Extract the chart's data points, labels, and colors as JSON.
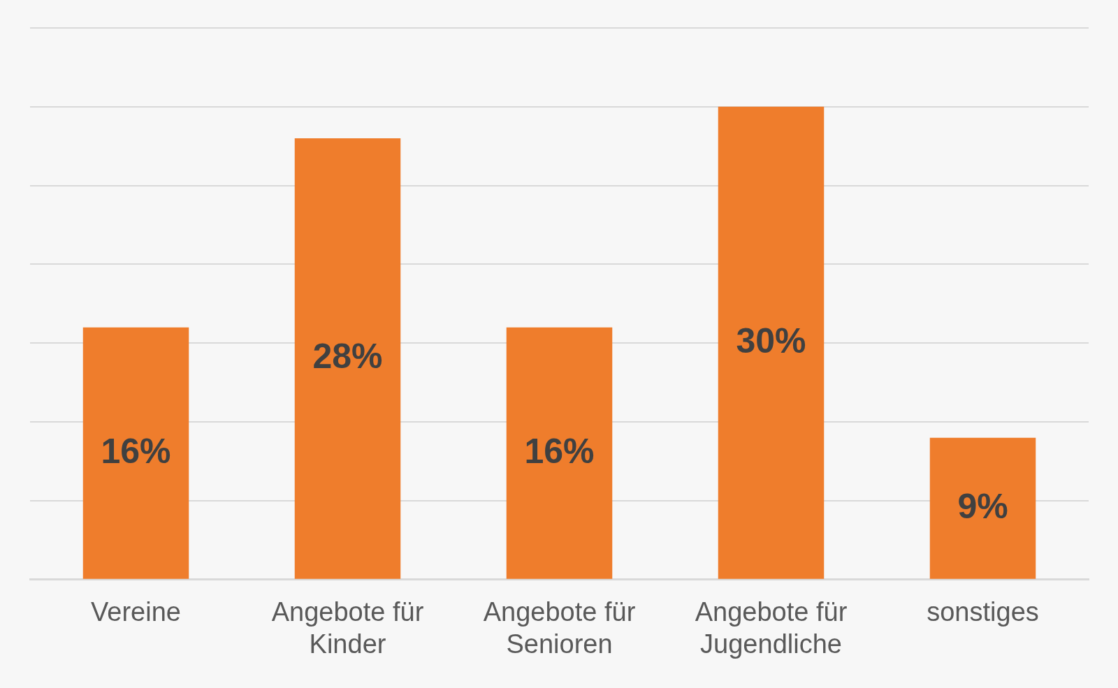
{
  "chart_data": {
    "type": "bar",
    "categories": [
      "Vereine",
      "Angebote für Kinder",
      "Angebote für Senioren",
      "Angebote für Jugendliche",
      "sonstiges"
    ],
    "values": [
      16,
      28,
      16,
      30,
      9
    ],
    "color": "#ef7d2c",
    "value_labels": [
      "16%",
      "28%",
      "16%",
      "30%",
      "9%"
    ],
    "ylim": [
      0,
      35
    ],
    "yticks": [
      {
        "value": 0,
        "label": null
      },
      {
        "value": 5,
        "label": null
      },
      {
        "value": 10,
        "label": null
      },
      {
        "value": 15,
        "label": null
      },
      {
        "value": 20,
        "label": null
      },
      {
        "value": 25,
        "label": null
      },
      {
        "value": 30,
        "label": null
      },
      {
        "value": 35,
        "label": null
      }
    ],
    "grid": "y",
    "tick_labels": "x"
  }
}
